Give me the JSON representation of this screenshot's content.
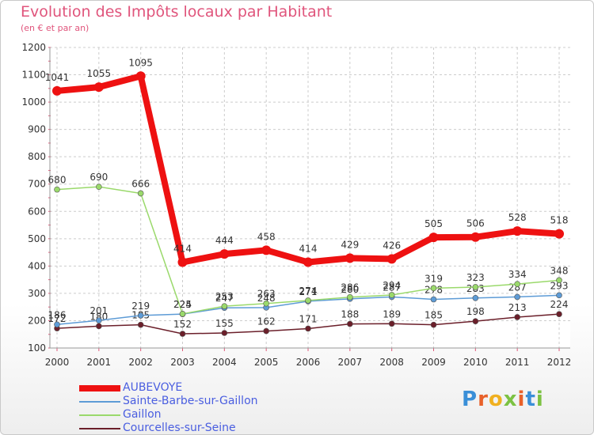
{
  "header": {
    "title": "Evolution des Impôts locaux par Habitant",
    "subtitle": "(en € et par an)"
  },
  "colors": {
    "title": "#e0557c",
    "axis_text": "#333333",
    "legend_text": "#4a5ee0",
    "grid": "#cccccc"
  },
  "chart_data": {
    "type": "line",
    "title": "Evolution des Impôts locaux par Habitant",
    "subtitle": "(en € et par an)",
    "xlabel": "",
    "ylabel": "",
    "ylim": [
      100,
      1200
    ],
    "yticks": [
      100,
      200,
      300,
      400,
      500,
      600,
      700,
      800,
      900,
      1000,
      1100,
      1200
    ],
    "grid": true,
    "legend_position": "bottom-left",
    "x": [
      2000,
      2001,
      2002,
      2003,
      2004,
      2005,
      2006,
      2007,
      2008,
      2009,
      2010,
      2011,
      2012
    ],
    "series": [
      {
        "name": "Courcelles-sur-Seine",
        "color": "#6b1f2a",
        "values": [
          172,
          180,
          185,
          152,
          155,
          162,
          171,
          188,
          189,
          185,
          198,
          213,
          224
        ],
        "labels": [
          "172",
          "180",
          "185",
          "152",
          "155",
          "162",
          "171",
          "188",
          "189",
          "185",
          "198",
          "213",
          "224"
        ]
      },
      {
        "name": "Sainte-Barbe-sur-Gaillon",
        "color": "#5d9bd6",
        "values": [
          186,
          201,
          219,
          224,
          247,
          248,
          271,
          280,
          287,
          278,
          283,
          287,
          293
        ],
        "labels": [
          "186",
          "201",
          "219",
          "224",
          "247",
          "248",
          "271",
          "280",
          "287",
          "278",
          "283",
          "287",
          "293"
        ]
      },
      {
        "name": "Gaillon",
        "color": "#9ad96b",
        "values": [
          680,
          690,
          666,
          225,
          253,
          263,
          274,
          286,
          294,
          319,
          323,
          334,
          348
        ],
        "labels": [
          "680",
          "690",
          "666",
          "225",
          "253",
          "263",
          "274",
          "286",
          "294",
          "319",
          "323",
          "334",
          "348"
        ]
      },
      {
        "name": "AUBEVOYE",
        "color": "#ee1111",
        "values": [
          1041,
          1055,
          1095,
          414,
          444,
          458,
          414,
          429,
          426,
          505,
          506,
          528,
          518
        ],
        "labels": [
          "1041",
          "1055",
          "1095",
          "414",
          "444",
          "458",
          "414",
          "429",
          "426",
          "505",
          "506",
          "528",
          "518"
        ]
      }
    ]
  },
  "legend": [
    {
      "label": "AUBEVOYE",
      "color": "#ee1111",
      "weight": 8
    },
    {
      "label": "Sainte-Barbe-sur-Gaillon",
      "color": "#5d9bd6",
      "weight": 2
    },
    {
      "label": "Gaillon",
      "color": "#9ad96b",
      "weight": 2
    },
    {
      "label": "Courcelles-sur-Seine",
      "color": "#6b1f2a",
      "weight": 2
    }
  ],
  "logo": {
    "text": "Proxiti",
    "letter_colors": [
      "#3a8fd8",
      "#e8612a",
      "#f0b020",
      "#7cc242",
      "#e8612a",
      "#3a8fd8",
      "#7cc242"
    ]
  }
}
